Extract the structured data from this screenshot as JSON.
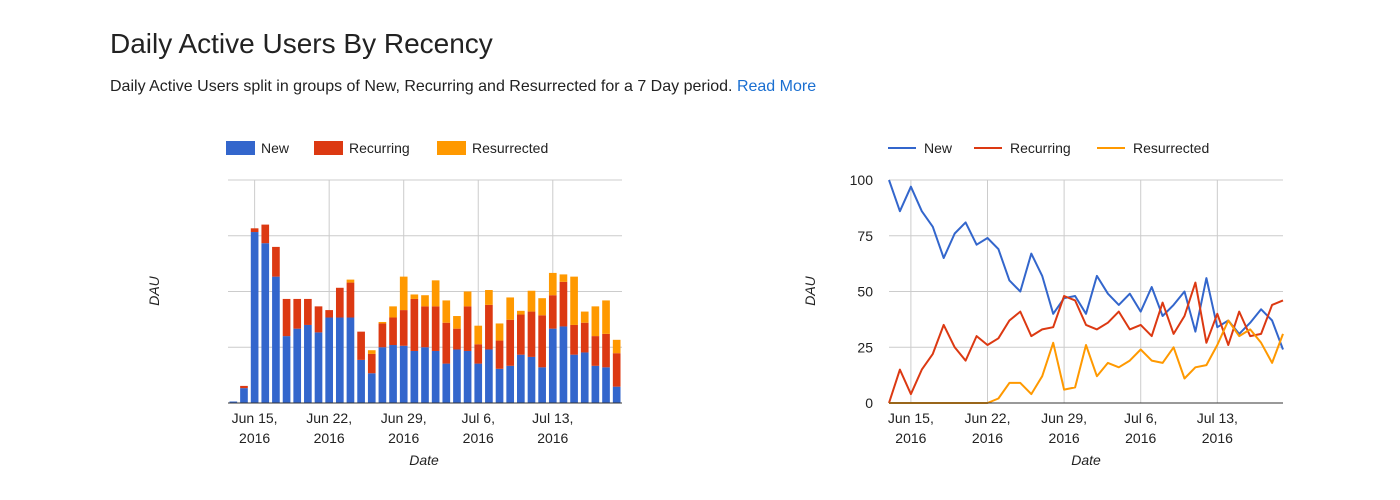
{
  "header": {
    "title": "Daily Active Users By Recency",
    "description": "Daily Active Users split in groups of New, Recurring and Resurrected for a 7 Day period.",
    "read_more_label": "Read More"
  },
  "colors": {
    "new_bar": "#3366cc",
    "recurring_bar": "#dc3912",
    "resurrected_bar": "#ff9900",
    "new_line": "#3366cc",
    "recurring_line": "#dc3912",
    "resurrected_line": "#ff9900",
    "grid": "#cccccc",
    "link": "#1a6fd1"
  },
  "chart_data": [
    {
      "type": "bar",
      "stacked": true,
      "title": "",
      "xlabel": "Date",
      "ylabel": "DAU",
      "x_tick_labels": [
        [
          "Jun 15,",
          "2016"
        ],
        [
          "Jun 22,",
          "2016"
        ],
        [
          "Jun 29,",
          "2016"
        ],
        [
          "Jul 6,",
          "2016"
        ],
        [
          "Jul 13,",
          "2016"
        ]
      ],
      "x_tick_index": [
        2,
        9,
        16,
        23,
        30
      ],
      "ylim": [
        0,
        300
      ],
      "y_gridlines": [
        0,
        75,
        150,
        225,
        300
      ],
      "y_tick_labels_visible": false,
      "grid": true,
      "legend_position": "top",
      "series": [
        {
          "name": "New",
          "values": [
            2,
            20,
            230,
            215,
            170,
            90,
            100,
            105,
            95,
            115,
            115,
            115,
            58,
            40,
            75,
            78,
            77,
            70,
            75,
            70,
            53,
            72,
            70,
            53,
            72,
            46,
            50,
            65,
            62,
            48,
            100,
            103,
            65,
            68,
            50,
            48,
            22
          ]
        },
        {
          "name": "Recurring",
          "values": [
            0,
            3,
            5,
            25,
            40,
            50,
            40,
            35,
            35,
            10,
            40,
            47,
            38,
            26,
            32,
            37,
            48,
            70,
            55,
            60,
            55,
            28,
            60,
            26,
            60,
            38,
            62,
            54,
            61,
            70,
            45,
            60,
            40,
            40,
            40,
            45,
            45
          ]
        },
        {
          "name": "Resurrected",
          "values": [
            0,
            0,
            0,
            0,
            0,
            0,
            0,
            0,
            0,
            0,
            0,
            4,
            0,
            5,
            2,
            15,
            45,
            6,
            15,
            35,
            30,
            17,
            20,
            25,
            20,
            23,
            30,
            5,
            28,
            23,
            30,
            10,
            65,
            15,
            40,
            45,
            18
          ]
        }
      ]
    },
    {
      "type": "line",
      "title": "",
      "xlabel": "Date",
      "ylabel": "DAU",
      "x_tick_labels": [
        [
          "Jun 15,",
          "2016"
        ],
        [
          "Jun 22,",
          "2016"
        ],
        [
          "Jun 29,",
          "2016"
        ],
        [
          "Jul 6,",
          "2016"
        ],
        [
          "Jul 13,",
          "2016"
        ]
      ],
      "x_tick_index": [
        2,
        9,
        16,
        23,
        30
      ],
      "ylim": [
        0,
        100
      ],
      "y_ticks": [
        0,
        25,
        50,
        75,
        100
      ],
      "y_tick_labels": [
        "0",
        "25",
        "50",
        "75",
        "100"
      ],
      "grid": true,
      "legend_position": "top",
      "series": [
        {
          "name": "New",
          "values": [
            100,
            86,
            97,
            86,
            79,
            65,
            76,
            81,
            71,
            74,
            69,
            55,
            50,
            67,
            57,
            40,
            47,
            48,
            40,
            57,
            49,
            44,
            49,
            41,
            52,
            39,
            44,
            50,
            32,
            56,
            34,
            37,
            31,
            36,
            42,
            37,
            24
          ]
        },
        {
          "name": "Recurring",
          "values": [
            0,
            15,
            4,
            15,
            22,
            35,
            25,
            19,
            30,
            26,
            29,
            37,
            41,
            30,
            33,
            34,
            48,
            46,
            35,
            33,
            36,
            41,
            33,
            35,
            30,
            45,
            31,
            39,
            54,
            27,
            40,
            26,
            41,
            30,
            31,
            44,
            46
          ]
        },
        {
          "name": "Resurrected",
          "values": [
            0,
            0,
            0,
            0,
            0,
            0,
            0,
            0,
            0,
            0,
            2,
            9,
            9,
            4,
            12,
            27,
            6,
            7,
            26,
            12,
            18,
            16,
            19,
            24,
            19,
            18,
            25,
            11,
            16,
            17,
            26,
            37,
            30,
            33,
            27,
            18,
            31
          ]
        }
      ]
    }
  ]
}
